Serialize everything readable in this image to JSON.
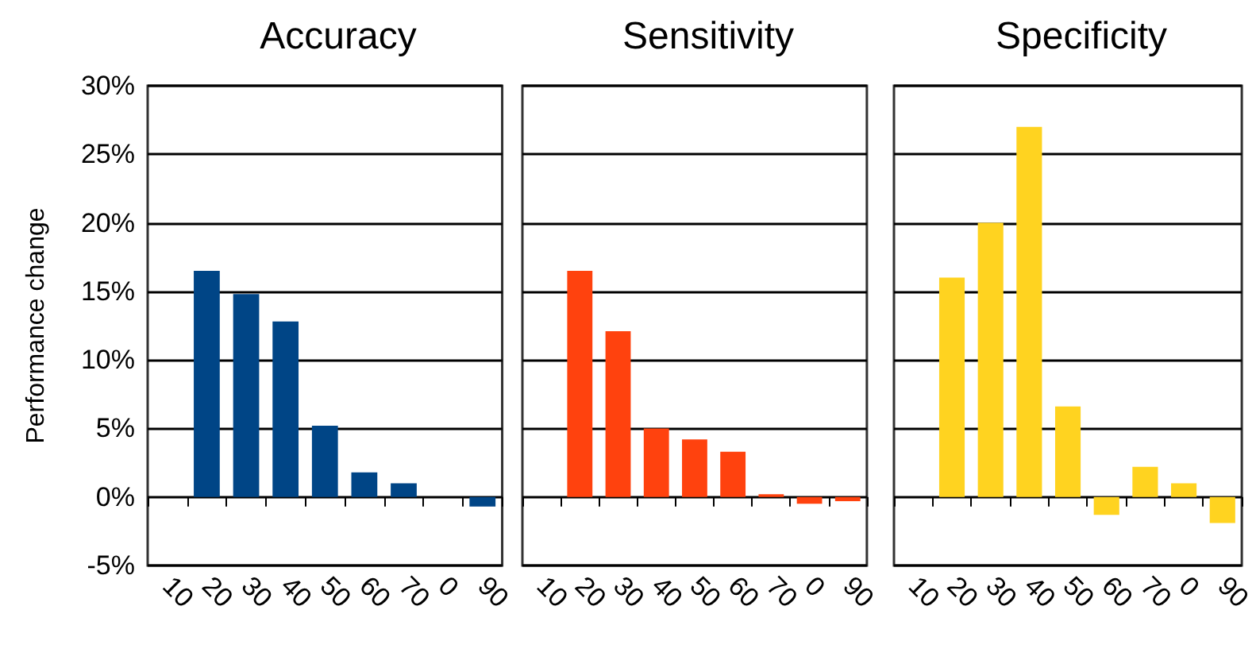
{
  "chart_data": [
    {
      "type": "bar",
      "title": "Accuracy",
      "ylabel": "Performance change",
      "categories": [
        "10",
        "20",
        "30",
        "40",
        "50",
        "60",
        "70",
        "0",
        "90"
      ],
      "series": [
        {
          "color": "#004586",
          "values": [
            null,
            16.5,
            14.8,
            12.8,
            5.2,
            1.8,
            1.0,
            0,
            -0.7
          ]
        }
      ],
      "ylim": [
        -5,
        30
      ],
      "yticks": [
        {
          "value": -5,
          "label": "-5%"
        },
        {
          "value": 0,
          "label": "0%"
        },
        {
          "value": 5,
          "label": "5%"
        },
        {
          "value": 10,
          "label": "10%"
        },
        {
          "value": 15,
          "label": "15%"
        },
        {
          "value": 20,
          "label": "20%"
        },
        {
          "value": 25,
          "label": "25%"
        },
        {
          "value": 30,
          "label": "30%"
        }
      ],
      "grid": "y"
    },
    {
      "type": "bar",
      "title": "Sensitivity",
      "categories": [
        "10",
        "20",
        "30",
        "40",
        "50",
        "60",
        "70",
        "0",
        "90"
      ],
      "series": [
        {
          "color": "#ff420e",
          "values": [
            null,
            16.5,
            12.1,
            5.0,
            4.2,
            3.3,
            0.2,
            -0.5,
            -0.3
          ]
        }
      ],
      "ylim": [
        -5,
        30
      ],
      "yticks": [
        -5,
        0,
        5,
        10,
        15,
        20,
        25,
        30
      ],
      "grid": "y",
      "tick_labels": "x"
    },
    {
      "type": "bar",
      "title": "Specificity",
      "categories": [
        "10",
        "20",
        "30",
        "40",
        "50",
        "60",
        "70",
        "0",
        "90"
      ],
      "series": [
        {
          "color": "#ffd320",
          "values": [
            null,
            16.0,
            20.0,
            27.0,
            6.6,
            -1.3,
            2.2,
            1.0,
            -1.9
          ]
        }
      ],
      "ylim": [
        -5,
        30
      ],
      "yticks": [
        -5,
        0,
        5,
        10,
        15,
        20,
        25,
        30
      ],
      "grid": "y",
      "tick_labels": "x"
    }
  ]
}
